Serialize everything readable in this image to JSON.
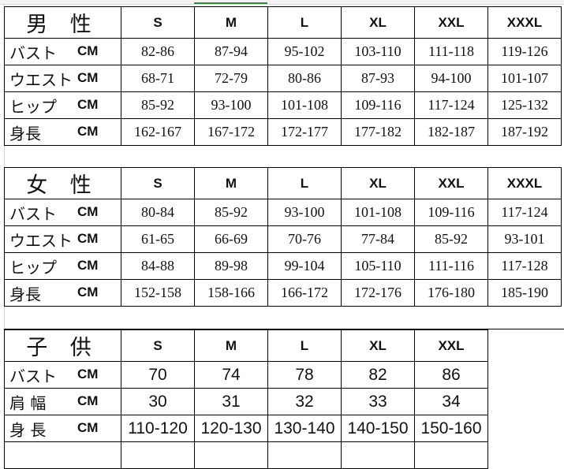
{
  "tables": [
    {
      "id": "men",
      "title": "男 性",
      "sizes": [
        "S",
        "M",
        "L",
        "XL",
        "XXL",
        "XXXL"
      ],
      "rows": [
        {
          "label": "バスト",
          "unit": "CM",
          "values": [
            "82-86",
            "87-94",
            "95-102",
            "103-110",
            "111-118",
            "119-126"
          ]
        },
        {
          "label": "ウエスト",
          "unit": "CM",
          "values": [
            "68-71",
            "72-79",
            "80-86",
            "87-93",
            "94-100",
            "101-107"
          ]
        },
        {
          "label": "ヒップ",
          "unit": "CM",
          "values": [
            "85-92",
            "93-100",
            "101-108",
            "109-116",
            "117-124",
            "125-132"
          ]
        },
        {
          "label": "身長",
          "unit": "CM",
          "values": [
            "162-167",
            "167-172",
            "172-177",
            "177-182",
            "182-187",
            "187-192"
          ]
        }
      ]
    },
    {
      "id": "women",
      "title": "女 性",
      "sizes": [
        "S",
        "M",
        "L",
        "XL",
        "XXL",
        "XXXL"
      ],
      "rows": [
        {
          "label": "バスト",
          "unit": "CM",
          "values": [
            "80-84",
            "85-92",
            "93-100",
            "101-108",
            "109-116",
            "117-124"
          ]
        },
        {
          "label": "ウエスト",
          "unit": "CM",
          "values": [
            "61-65",
            "66-69",
            "70-76",
            "77-84",
            "85-92",
            "93-101"
          ]
        },
        {
          "label": "ヒップ",
          "unit": "CM",
          "values": [
            "84-88",
            "89-98",
            "99-104",
            "105-110",
            "111-116",
            "117-128"
          ]
        },
        {
          "label": "身長",
          "unit": "CM",
          "values": [
            "152-158",
            "158-166",
            "166-172",
            "172-176",
            "176-180",
            "185-190"
          ]
        }
      ]
    },
    {
      "id": "kids",
      "title": "子 供",
      "sizes": [
        "S",
        "M",
        "L",
        "XL",
        "XXL"
      ],
      "rows": [
        {
          "label": "バスト",
          "unit": "CM",
          "values": [
            "70",
            "74",
            "78",
            "82",
            "86"
          ]
        },
        {
          "label": "肩 幅",
          "unit": "CM",
          "values": [
            "30",
            "31",
            "32",
            "33",
            "34"
          ]
        },
        {
          "label": "身 長",
          "unit": "CM",
          "values": [
            "110-120",
            "120-130",
            "130-140",
            "140-150",
            "150-160"
          ]
        }
      ]
    }
  ]
}
